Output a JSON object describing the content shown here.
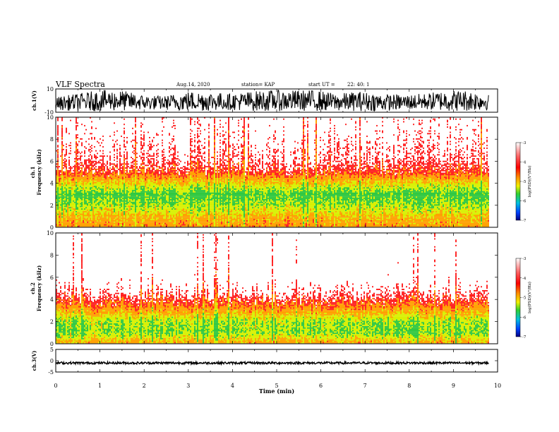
{
  "header": {
    "title": "VLF Spectra",
    "date": "Aug.14, 2020",
    "station": "station= KAP",
    "start": "start UT =",
    "start_time": "22: 40: 1"
  },
  "colorbar": {
    "label": "log(PSD)(V²/Hz)",
    "ticks": [
      "-3",
      "-4",
      "-5",
      "-6",
      "-7"
    ]
  },
  "colors": {
    "trace": "#000000",
    "low": "#ff2020",
    "mid": "#ffa000",
    "high": "#d8f000",
    "peak": "#30c840"
  },
  "chart_data": [
    {
      "type": "line",
      "panel": "ch1-waveform",
      "ylabel": "ch.1(V)",
      "ylim": [
        -10,
        10
      ],
      "yticks": [
        "10",
        "-10"
      ],
      "x": [
        0,
        0.5,
        1,
        1.5,
        2,
        2.5,
        3,
        3.5,
        4,
        4.5,
        5,
        5.5,
        6,
        6.5,
        7,
        7.5,
        8,
        8.5,
        9,
        9.5,
        9.8
      ],
      "y_range_note": "",
      "envelope_min": [
        -8,
        -9,
        -9,
        -9,
        -8,
        -8,
        -9,
        -9,
        -8,
        -9,
        -9,
        -9,
        -9,
        -9,
        -9,
        -9,
        -8,
        -8,
        -9,
        -9,
        -8
      ],
      "envelope_max": [
        3,
        6,
        9,
        9,
        5,
        4,
        8,
        8,
        6,
        8,
        9,
        9,
        9,
        6,
        8,
        6,
        5,
        6,
        9,
        9,
        6
      ]
    },
    {
      "type": "heatmap",
      "panel": "ch1-spectrogram",
      "ylabel": "Frequency (kHz)",
      "channel": "ch.1",
      "ylim": [
        0,
        10
      ],
      "yticks": [
        "10",
        "8",
        "6",
        "4",
        "2",
        "0"
      ],
      "xlim": [
        0,
        10
      ],
      "freq_kHz": [
        0,
        1,
        2,
        3,
        4,
        5,
        6,
        7,
        8,
        9,
        10
      ],
      "log_psd_profile": [
        -4.2,
        -4.5,
        -5.0,
        -5.3,
        -4.6,
        -3.8,
        -3.5,
        -3.4,
        -3.3,
        -3.2,
        -3.2
      ]
    },
    {
      "type": "heatmap",
      "panel": "ch2-spectrogram",
      "ylabel": "Frequency (kHz)",
      "channel": "ch.2",
      "ylim": [
        0,
        10
      ],
      "yticks": [
        "10",
        "8",
        "6",
        "4",
        "2",
        "0"
      ],
      "xlim": [
        0,
        10
      ],
      "freq_kHz": [
        0,
        1,
        2,
        3,
        4,
        5,
        6,
        7,
        8,
        9,
        10
      ],
      "log_psd_profile": [
        -4.3,
        -5.1,
        -5.0,
        -4.3,
        -3.7,
        -3.3,
        -3.1,
        -3.0,
        -3.0,
        -3.0,
        -3.0
      ]
    },
    {
      "type": "line",
      "panel": "ch3-waveform",
      "ylabel": "ch.3(V)",
      "ylim": [
        -5,
        5
      ],
      "yticks": [
        "5",
        "0",
        "-5"
      ],
      "x": [
        0,
        9.8
      ],
      "envelope_min": [
        -1.5,
        -1.5
      ],
      "envelope_max": [
        -0.5,
        -0.5
      ]
    }
  ],
  "xaxis": {
    "label": "Time (min)",
    "ticks": [
      "0",
      "1",
      "2",
      "3",
      "4",
      "5",
      "6",
      "7",
      "8",
      "9",
      "10"
    ]
  }
}
